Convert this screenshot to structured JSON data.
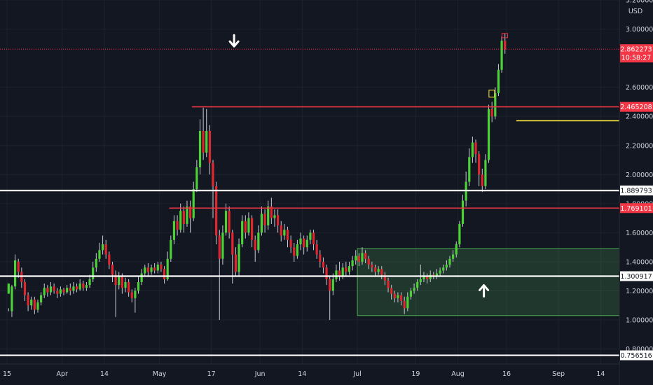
{
  "chart_data": {
    "type": "candlestick",
    "currency": "USD",
    "y_axis": {
      "min": 0.74,
      "max": 3.2,
      "ticks": [
        {
          "v": 3.2,
          "label": "3.200000"
        },
        {
          "v": 3.0,
          "label": "3.000000"
        },
        {
          "v": 2.6,
          "label": "2.600000"
        },
        {
          "v": 2.4,
          "label": "2.400000"
        },
        {
          "v": 2.2,
          "label": "2.200000"
        },
        {
          "v": 2.0,
          "label": "2.000000"
        },
        {
          "v": 1.8,
          "label": "1.800000"
        },
        {
          "v": 1.6,
          "label": "1.600000"
        },
        {
          "v": 1.4,
          "label": "1.400000"
        },
        {
          "v": 1.2,
          "label": "1.200000"
        },
        {
          "v": 1.0,
          "label": "1.000000"
        },
        {
          "v": 0.8,
          "label": "0.800000"
        }
      ]
    },
    "x_axis": {
      "start_day": 0,
      "end_day": 190,
      "ticks": [
        {
          "day": 0,
          "label": "15"
        },
        {
          "day": 17,
          "label": "Apr"
        },
        {
          "day": 30,
          "label": "14"
        },
        {
          "day": 47,
          "label": "May"
        },
        {
          "day": 63,
          "label": "17"
        },
        {
          "day": 78,
          "label": "Jun"
        },
        {
          "day": 91,
          "label": "14"
        },
        {
          "day": 108,
          "label": "Jul"
        },
        {
          "day": 126,
          "label": "19"
        },
        {
          "day": 139,
          "label": "Aug"
        },
        {
          "day": 154,
          "label": "16"
        },
        {
          "day": 170,
          "label": "Sep"
        },
        {
          "day": 183,
          "label": "14"
        }
      ]
    },
    "horizontal_lines": [
      {
        "value": 1.889793,
        "label": "1.889793",
        "color": "#ffffff",
        "style": "thick"
      },
      {
        "value": 1.300917,
        "label": "1.300917",
        "color": "#ffffff",
        "style": "thick"
      },
      {
        "value": 0.756516,
        "label": "0.756516",
        "color": "#ffffff",
        "style": "thick"
      },
      {
        "value": 2.465208,
        "label": "2.465208",
        "color": "#f23645",
        "style": "solid",
        "from_day": 57
      },
      {
        "value": 1.769101,
        "label": "1.769101",
        "color": "#f23645",
        "style": "solid",
        "from_day": 50
      },
      {
        "value": 2.37,
        "color": "#ffeb3b",
        "style": "solid",
        "from_day": 157,
        "to_day": 194
      }
    ],
    "last_price": {
      "value": 2.862273,
      "label": "2.862273",
      "countdown": "10:58:27",
      "color": "#f23645"
    },
    "zone": {
      "from_day": 108,
      "to_day": 192,
      "top": 1.49,
      "bottom": 1.03,
      "color": "#4caf50"
    },
    "arrows": [
      {
        "day": 70,
        "value": 2.92,
        "direction": "down"
      },
      {
        "day": 147,
        "value": 1.2,
        "direction": "up"
      }
    ],
    "candles": [
      [
        1.18,
        1.25,
        1.08,
        1.06
      ],
      [
        1.06,
        1.23,
        1.24,
        1.02
      ],
      [
        1.23,
        1.41,
        1.45,
        1.21
      ],
      [
        1.4,
        1.33,
        1.42,
        1.29
      ],
      [
        1.33,
        1.26,
        1.36,
        1.22
      ],
      [
        1.26,
        1.17,
        1.28,
        1.13
      ],
      [
        1.17,
        1.1,
        1.19,
        1.06
      ],
      [
        1.1,
        1.14,
        1.16,
        1.07
      ],
      [
        1.14,
        1.07,
        1.16,
        1.04
      ],
      [
        1.07,
        1.12,
        1.14,
        1.05
      ],
      [
        1.12,
        1.17,
        1.19,
        1.1
      ],
      [
        1.17,
        1.22,
        1.25,
        1.15
      ],
      [
        1.22,
        1.19,
        1.24,
        1.16
      ],
      [
        1.19,
        1.23,
        1.26,
        1.17
      ],
      [
        1.23,
        1.2,
        1.25,
        1.18
      ],
      [
        1.2,
        1.18,
        1.22,
        1.15
      ],
      [
        1.18,
        1.21,
        1.23,
        1.16
      ],
      [
        1.21,
        1.19,
        1.22,
        1.17
      ],
      [
        1.19,
        1.22,
        1.24,
        1.18
      ],
      [
        1.22,
        1.2,
        1.25,
        1.17
      ],
      [
        1.2,
        1.23,
        1.26,
        1.18
      ],
      [
        1.23,
        1.21,
        1.25,
        1.19
      ],
      [
        1.21,
        1.25,
        1.28,
        1.2
      ],
      [
        1.25,
        1.22,
        1.27,
        1.2
      ],
      [
        1.22,
        1.24,
        1.26,
        1.2
      ],
      [
        1.24,
        1.28,
        1.31,
        1.22
      ],
      [
        1.28,
        1.36,
        1.4,
        1.26
      ],
      [
        1.36,
        1.42,
        1.46,
        1.33
      ],
      [
        1.42,
        1.48,
        1.53,
        1.4
      ],
      [
        1.48,
        1.52,
        1.58,
        1.45
      ],
      [
        1.52,
        1.45,
        1.55,
        1.42
      ],
      [
        1.45,
        1.38,
        1.47,
        1.35
      ],
      [
        1.38,
        1.31,
        1.4,
        1.26
      ],
      [
        1.31,
        1.24,
        1.34,
        1.02
      ],
      [
        1.24,
        1.3,
        1.33,
        1.21
      ],
      [
        1.3,
        1.22,
        1.32,
        1.18
      ],
      [
        1.22,
        1.26,
        1.29,
        1.19
      ],
      [
        1.26,
        1.19,
        1.28,
        1.16
      ],
      [
        1.19,
        1.15,
        1.21,
        1.12
      ],
      [
        1.15,
        1.2,
        1.22,
        1.05
      ],
      [
        1.2,
        1.26,
        1.3,
        1.18
      ],
      [
        1.26,
        1.32,
        1.35,
        1.24
      ],
      [
        1.32,
        1.36,
        1.38,
        1.3
      ],
      [
        1.36,
        1.33,
        1.39,
        1.3
      ],
      [
        1.33,
        1.36,
        1.38,
        1.31
      ],
      [
        1.36,
        1.34,
        1.39,
        1.32
      ],
      [
        1.34,
        1.38,
        1.4,
        1.32
      ],
      [
        1.38,
        1.35,
        1.4,
        1.33
      ],
      [
        1.35,
        1.28,
        1.37,
        1.25
      ],
      [
        1.28,
        1.42,
        1.47,
        1.27
      ],
      [
        1.42,
        1.55,
        1.58,
        1.4
      ],
      [
        1.55,
        1.68,
        1.72,
        1.52
      ],
      [
        1.68,
        1.62,
        1.72,
        1.58
      ],
      [
        1.62,
        1.75,
        1.8,
        1.6
      ],
      [
        1.75,
        1.66,
        1.78,
        1.6
      ],
      [
        1.66,
        1.78,
        1.82,
        1.64
      ],
      [
        1.78,
        1.7,
        1.82,
        1.6
      ],
      [
        1.7,
        1.9,
        1.95,
        1.68
      ],
      [
        1.9,
        2.05,
        2.1,
        1.88
      ],
      [
        2.05,
        2.3,
        2.38,
        2.0
      ],
      [
        2.3,
        2.15,
        2.46,
        2.1
      ],
      [
        2.15,
        2.3,
        2.45,
        2.12
      ],
      [
        2.3,
        2.08,
        2.34,
        2.0
      ],
      [
        2.08,
        1.92,
        2.1,
        1.7
      ],
      [
        1.92,
        1.58,
        1.95,
        1.52
      ],
      [
        1.58,
        1.42,
        1.62,
        1.0
      ],
      [
        1.42,
        1.6,
        1.65,
        1.38
      ],
      [
        1.6,
        1.75,
        1.8,
        1.58
      ],
      [
        1.75,
        1.6,
        1.78,
        1.56
      ],
      [
        1.6,
        1.45,
        1.62,
        1.25
      ],
      [
        1.45,
        1.33,
        1.5,
        1.3
      ],
      [
        1.33,
        1.52,
        1.56,
        1.3
      ],
      [
        1.52,
        1.68,
        1.72,
        1.5
      ],
      [
        1.68,
        1.6,
        1.72,
        1.56
      ],
      [
        1.6,
        1.7,
        1.74,
        1.58
      ],
      [
        1.7,
        1.55,
        1.72,
        1.5
      ],
      [
        1.55,
        1.48,
        1.58,
        1.4
      ],
      [
        1.48,
        1.6,
        1.65,
        1.46
      ],
      [
        1.6,
        1.73,
        1.78,
        1.58
      ],
      [
        1.73,
        1.65,
        1.76,
        1.6
      ],
      [
        1.65,
        1.78,
        1.82,
        1.62
      ],
      [
        1.78,
        1.7,
        1.84,
        1.66
      ],
      [
        1.7,
        1.72,
        1.76,
        1.64
      ],
      [
        1.72,
        1.65,
        1.76,
        1.6
      ],
      [
        1.65,
        1.58,
        1.68,
        1.54
      ],
      [
        1.58,
        1.62,
        1.66,
        1.55
      ],
      [
        1.62,
        1.55,
        1.64,
        1.5
      ],
      [
        1.55,
        1.5,
        1.58,
        1.46
      ],
      [
        1.5,
        1.44,
        1.53,
        1.4
      ],
      [
        1.44,
        1.52,
        1.55,
        1.42
      ],
      [
        1.52,
        1.56,
        1.6,
        1.48
      ],
      [
        1.56,
        1.5,
        1.58,
        1.45
      ],
      [
        1.5,
        1.55,
        1.58,
        1.47
      ],
      [
        1.55,
        1.6,
        1.62,
        1.52
      ],
      [
        1.6,
        1.52,
        1.62,
        1.48
      ],
      [
        1.52,
        1.45,
        1.55,
        1.42
      ],
      [
        1.45,
        1.4,
        1.48,
        1.36
      ],
      [
        1.4,
        1.36,
        1.43,
        1.32
      ],
      [
        1.36,
        1.28,
        1.38,
        1.24
      ],
      [
        1.28,
        1.2,
        1.3,
        1.0
      ],
      [
        1.2,
        1.28,
        1.32,
        1.17
      ],
      [
        1.28,
        1.34,
        1.38,
        1.26
      ],
      [
        1.34,
        1.3,
        1.4,
        1.27
      ],
      [
        1.3,
        1.36,
        1.39,
        1.28
      ],
      [
        1.36,
        1.33,
        1.4,
        1.3
      ],
      [
        1.33,
        1.37,
        1.4,
        1.31
      ],
      [
        1.37,
        1.41,
        1.44,
        1.34
      ],
      [
        1.41,
        1.44,
        1.48,
        1.38
      ],
      [
        1.44,
        1.4,
        1.46,
        1.37
      ],
      [
        1.4,
        1.46,
        1.5,
        1.38
      ],
      [
        1.46,
        1.42,
        1.48,
        1.39
      ],
      [
        1.42,
        1.38,
        1.44,
        1.35
      ],
      [
        1.38,
        1.36,
        1.4,
        1.33
      ],
      [
        1.36,
        1.33,
        1.38,
        1.3
      ],
      [
        1.33,
        1.35,
        1.37,
        1.31
      ],
      [
        1.35,
        1.31,
        1.37,
        1.28
      ],
      [
        1.31,
        1.27,
        1.33,
        1.24
      ],
      [
        1.27,
        1.22,
        1.29,
        1.19
      ],
      [
        1.22,
        1.18,
        1.24,
        1.14
      ],
      [
        1.18,
        1.15,
        1.2,
        1.12
      ],
      [
        1.15,
        1.17,
        1.19,
        1.12
      ],
      [
        1.17,
        1.13,
        1.19,
        1.1
      ],
      [
        1.13,
        1.08,
        1.16,
        1.04
      ],
      [
        1.08,
        1.16,
        1.19,
        1.06
      ],
      [
        1.16,
        1.2,
        1.22,
        1.14
      ],
      [
        1.2,
        1.22,
        1.25,
        1.18
      ],
      [
        1.22,
        1.26,
        1.28,
        1.2
      ],
      [
        1.26,
        1.28,
        1.38,
        1.24
      ],
      [
        1.28,
        1.3,
        1.33,
        1.26
      ],
      [
        1.3,
        1.28,
        1.32,
        1.25
      ],
      [
        1.28,
        1.31,
        1.34,
        1.26
      ],
      [
        1.31,
        1.3,
        1.33,
        1.28
      ],
      [
        1.3,
        1.32,
        1.35,
        1.28
      ],
      [
        1.32,
        1.34,
        1.36,
        1.3
      ],
      [
        1.34,
        1.36,
        1.38,
        1.32
      ],
      [
        1.36,
        1.38,
        1.41,
        1.34
      ],
      [
        1.38,
        1.42,
        1.44,
        1.36
      ],
      [
        1.42,
        1.45,
        1.48,
        1.4
      ],
      [
        1.45,
        1.52,
        1.54,
        1.43
      ],
      [
        1.52,
        1.66,
        1.68,
        1.5
      ],
      [
        1.66,
        1.82,
        1.86,
        1.64
      ],
      [
        1.82,
        1.95,
        2.02,
        1.78
      ],
      [
        1.95,
        2.12,
        2.18,
        1.92
      ],
      [
        2.12,
        2.22,
        2.26,
        2.08
      ],
      [
        2.22,
        2.14,
        2.24,
        2.08
      ],
      [
        2.14,
        2.0,
        2.16,
        1.92
      ],
      [
        2.0,
        1.92,
        2.04,
        1.88
      ],
      [
        1.92,
        2.1,
        2.14,
        1.9
      ],
      [
        2.1,
        2.45,
        2.48,
        2.08
      ],
      [
        2.45,
        2.4,
        2.5,
        2.36
      ],
      [
        2.4,
        2.56,
        2.6,
        2.38
      ],
      [
        2.56,
        2.72,
        2.76,
        2.54
      ],
      [
        2.72,
        2.92,
        2.95,
        2.7
      ],
      [
        2.92,
        2.86,
        2.97,
        2.83
      ]
    ]
  }
}
